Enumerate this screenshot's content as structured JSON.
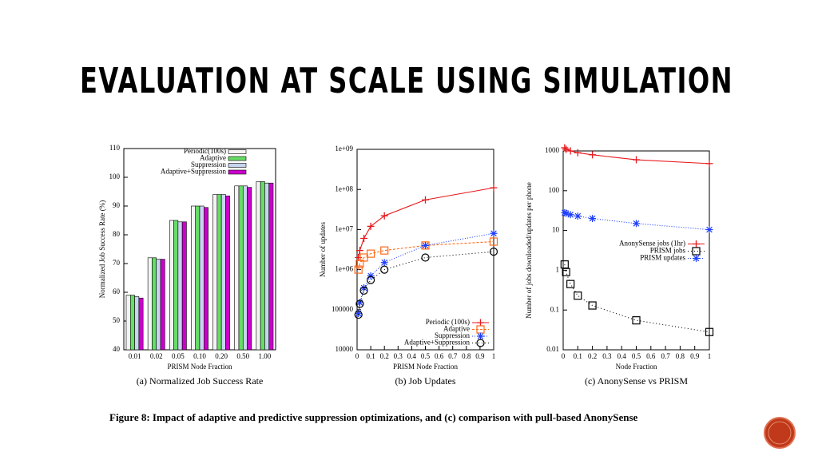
{
  "slide": {
    "title": "EVALUATION AT SCALE USING SIMULATION",
    "caption": "Figure 8: Impact of adaptive and predictive suppression optimizations, and (c) comparison with pull-based AnonySense"
  },
  "chart_data": [
    {
      "type": "bar",
      "subtitle": "(a) Normalized Job Success Rate",
      "x_label": "PRISM Node Fraction",
      "y_label": "Normalized Job Success Rate (%)",
      "categories": [
        "0.01",
        "0.02",
        "0.05",
        "0.10",
        "0.20",
        "0.50",
        "1.00"
      ],
      "series": [
        {
          "name": "Periodic(100s)",
          "color": "#f4f4f4",
          "values": [
            59,
            72,
            85,
            90,
            94,
            97,
            98.5
          ]
        },
        {
          "name": "Adaptive",
          "color": "#66dd66",
          "values": [
            59,
            72,
            85,
            90,
            94,
            97,
            98.5
          ]
        },
        {
          "name": "Suppression",
          "color": "#c8d4f0",
          "values": [
            58.5,
            71.5,
            84.5,
            90,
            94,
            97,
            98
          ]
        },
        {
          "name": "Adaptive+Suppression",
          "color": "#cc00cc",
          "values": [
            58,
            71.5,
            84.5,
            89.5,
            93.5,
            96.5,
            98
          ]
        }
      ],
      "ylim": [
        40,
        110
      ],
      "yticks": [
        40,
        50,
        60,
        70,
        80,
        90,
        100,
        110
      ],
      "legend": "upper left"
    },
    {
      "type": "line",
      "subtitle": "(b) Job Updates",
      "x_label": "PRISM Node Fraction",
      "y_label": "Number of updates",
      "x": [
        0.01,
        0.02,
        0.05,
        0.1,
        0.2,
        0.5,
        1
      ],
      "series": [
        {
          "name": "Periodic (100s)",
          "color": "#e8181c",
          "marker": "plus",
          "dash": "",
          "values": [
            2000000,
            3000000,
            6000000,
            12000000,
            22000000,
            55000000,
            110000000
          ]
        },
        {
          "name": "Adaptive",
          "color": "#ff6a1a",
          "marker": "square",
          "dash": "3,2",
          "values": [
            1000000,
            1400000,
            2000000,
            2500000,
            3000000,
            4000000,
            5000000
          ]
        },
        {
          "name": "Suppression",
          "color": "#1f3fff",
          "marker": "star",
          "dash": "1,2",
          "values": [
            80000,
            150000,
            350000,
            700000,
            1500000,
            4000000,
            8000000
          ]
        },
        {
          "name": "Adaptive+Suppression",
          "color": "#000000",
          "marker": "circle",
          "dash": "1,3",
          "values": [
            75000,
            140000,
            300000,
            550000,
            1000000,
            2000000,
            2800000
          ]
        }
      ],
      "log_y": true,
      "xlim": [
        0,
        1
      ],
      "xticks": [
        0,
        0.1,
        0.2,
        0.3,
        0.4,
        0.5,
        0.6,
        0.7,
        0.8,
        0.9,
        1
      ],
      "ylim": [
        10000,
        1000000000
      ],
      "yticks": [
        10000,
        100000,
        {
          "value": 1000000,
          "label": "1e+06"
        },
        {
          "value": 10000000,
          "label": "1e+07"
        },
        {
          "value": 100000000,
          "label": "1e+08"
        },
        {
          "value": 1000000000,
          "label": "1e+09"
        }
      ],
      "legend": "lower right"
    },
    {
      "type": "line",
      "subtitle": "(c) AnonySense vs PRISM",
      "x_label": "Node Fraction",
      "y_label": "Number of jobs downloaded/updates per phone",
      "x": [
        0.01,
        0.02,
        0.05,
        0.1,
        0.2,
        0.5,
        1
      ],
      "series": [
        {
          "name": "AnonySense jobs (1hr)",
          "color": "#e8181c",
          "marker": "plus",
          "dash": "",
          "values": [
            1200,
            1100,
            1000,
            900,
            800,
            600,
            480
          ]
        },
        {
          "name": "PRISM jobs",
          "color": "#000000",
          "marker": "square",
          "dash": "1,3",
          "values": [
            1.4,
            0.9,
            0.45,
            0.23,
            0.13,
            0.055,
            0.028
          ]
        },
        {
          "name": "PRISM updates",
          "color": "#1f3fff",
          "marker": "star",
          "dash": "1,2",
          "values": [
            28,
            27,
            25,
            23,
            20,
            15,
            10.5
          ]
        }
      ],
      "log_y": true,
      "xlim": [
        0,
        1
      ],
      "xticks": [
        0,
        0.1,
        0.2,
        0.3,
        0.4,
        0.5,
        0.6,
        0.7,
        0.8,
        0.9,
        1
      ],
      "ylim": [
        0.01,
        1000
      ],
      "yticks": [
        0.01,
        0.1,
        1,
        10,
        100,
        1000
      ],
      "legend": "center right"
    }
  ]
}
